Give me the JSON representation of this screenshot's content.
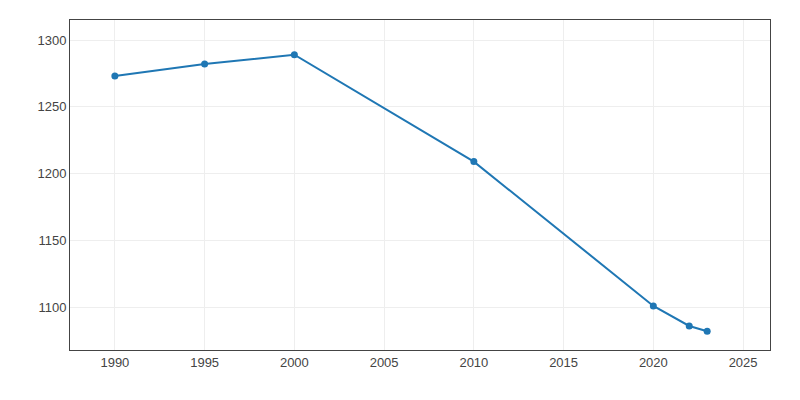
{
  "chart_data": {
    "type": "line",
    "x": [
      1990,
      1995,
      2000,
      2010,
      2020,
      2022,
      2023
    ],
    "values": [
      1273,
      1282,
      1289,
      1209,
      1101,
      1086,
      1082
    ],
    "marker": "circle",
    "xlim": [
      1987.5,
      2026.5
    ],
    "ylim": [
      1068,
      1315
    ],
    "xticks": [
      1990,
      1995,
      2000,
      2005,
      2010,
      2015,
      2020,
      2025
    ],
    "yticks": [
      1100,
      1150,
      1200,
      1250,
      1300
    ],
    "grid": true
  }
}
